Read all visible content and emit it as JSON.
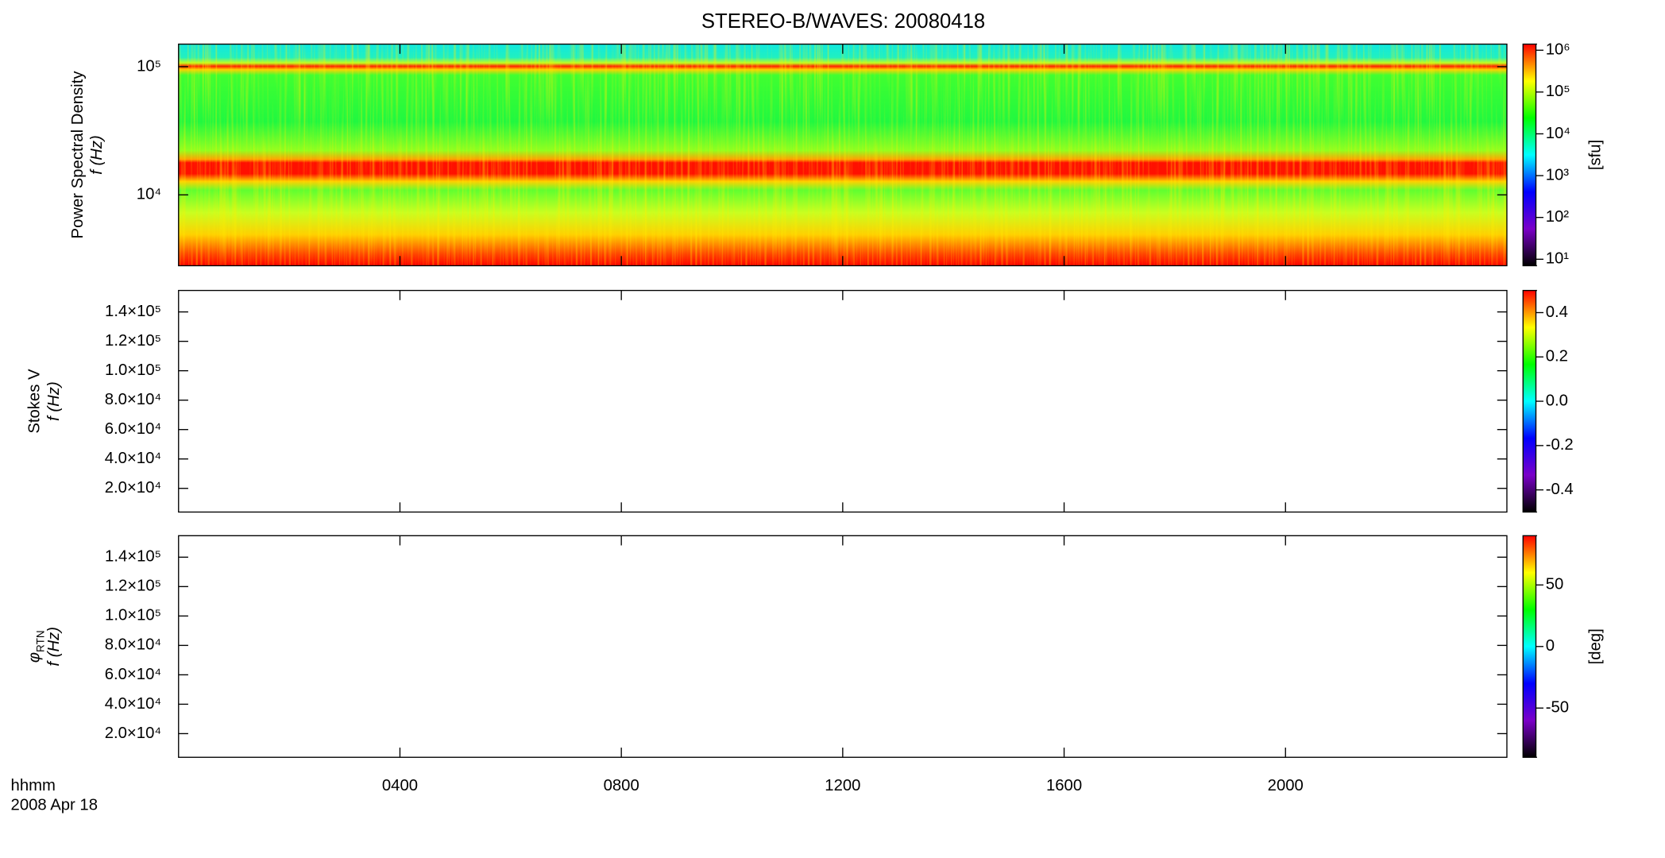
{
  "chart_data": [
    {
      "type": "spectrogram",
      "title": "STEREO-B/WAVES: 20080418",
      "filled": true,
      "ylabel": [
        "Power Spectral Density",
        "f (Hz)"
      ],
      "ylog": true,
      "ylim": [
        2800,
        150000
      ],
      "yticks": [
        {
          "value": 10000,
          "label": "10⁴"
        },
        {
          "value": 100000,
          "label": "10⁵"
        }
      ],
      "xlim": [
        0,
        24
      ],
      "xticks": [
        4,
        8,
        12,
        16,
        20
      ],
      "colormap": [
        "#000000",
        "#7a00c8",
        "#0000ff",
        "#00ffff",
        "#00ff00",
        "#ffff00",
        "#ff0000"
      ],
      "colorbar": {
        "label": "[sfu]",
        "log": true,
        "clim": [
          7,
          1400000
        ],
        "cticks": [
          {
            "value": 10,
            "label": "10¹"
          },
          {
            "value": 100,
            "label": "10²"
          },
          {
            "value": 1000,
            "label": "10³"
          },
          {
            "value": 10000,
            "label": "10⁴"
          },
          {
            "value": 100000,
            "label": "10⁵"
          },
          {
            "value": 1000000,
            "label": "10⁶"
          }
        ]
      }
    },
    {
      "type": "spectrogram",
      "filled": false,
      "ylabel": [
        "Stokes V",
        "f (Hz)"
      ],
      "ylog": false,
      "ylim": [
        3900,
        154600
      ],
      "yticks": [
        {
          "value": 20000,
          "label": "2.0×10⁴"
        },
        {
          "value": 40000,
          "label": "4.0×10⁴"
        },
        {
          "value": 60000,
          "label": "6.0×10⁴"
        },
        {
          "value": 80000,
          "label": "8.0×10⁴"
        },
        {
          "value": 100000,
          "label": "1.0×10⁵"
        },
        {
          "value": 120000,
          "label": "1.2×10⁵"
        },
        {
          "value": 140000,
          "label": "1.4×10⁵"
        }
      ],
      "xlim": [
        0,
        24
      ],
      "xticks": [
        4,
        8,
        12,
        16,
        20
      ],
      "colormap": [
        "#000000",
        "#7a00c8",
        "#0000ff",
        "#00ffff",
        "#00ff00",
        "#ffff00",
        "#ff0000"
      ],
      "colorbar": {
        "log": false,
        "clim": [
          -0.5,
          0.5
        ],
        "cticks": [
          {
            "value": -0.4,
            "label": "-0.4"
          },
          {
            "value": -0.2,
            "label": "-0.2"
          },
          {
            "value": 0,
            "label": "0.0"
          },
          0.2,
          0.4
        ]
      }
    },
    {
      "type": "spectrogram",
      "filled": false,
      "ylabel": [
        "φ",
        "f (Hz)"
      ],
      "ylabel_sub": "RTN",
      "ylog": false,
      "ylim": [
        3900,
        154600
      ],
      "yticks": [
        {
          "value": 20000,
          "label": "2.0×10⁴"
        },
        {
          "value": 40000,
          "label": "4.0×10⁴"
        },
        {
          "value": 60000,
          "label": "6.0×10⁴"
        },
        {
          "value": 80000,
          "label": "8.0×10⁴"
        },
        {
          "value": 100000,
          "label": "1.0×10⁵"
        },
        {
          "value": 120000,
          "label": "1.2×10⁵"
        },
        {
          "value": 140000,
          "label": "1.4×10⁵"
        }
      ],
      "xlim": [
        0,
        24
      ],
      "xticks": [
        {
          "value": 4,
          "label": "0400"
        },
        {
          "value": 8,
          "label": "0800"
        },
        {
          "value": 12,
          "label": "1200"
        },
        {
          "value": 16,
          "label": "1600"
        },
        {
          "value": 20,
          "label": "2000"
        }
      ],
      "xlabel": [
        "hhmm",
        "2008 Apr 18"
      ],
      "colormap": [
        "#000000",
        "#7a00c8",
        "#0000ff",
        "#00ffff",
        "#00ff00",
        "#ffff00",
        "#ff0000"
      ],
      "colorbar": {
        "label": "[deg]",
        "log": false,
        "clim": [
          -90,
          90
        ],
        "cticks": [
          -50,
          0,
          50
        ]
      }
    }
  ]
}
